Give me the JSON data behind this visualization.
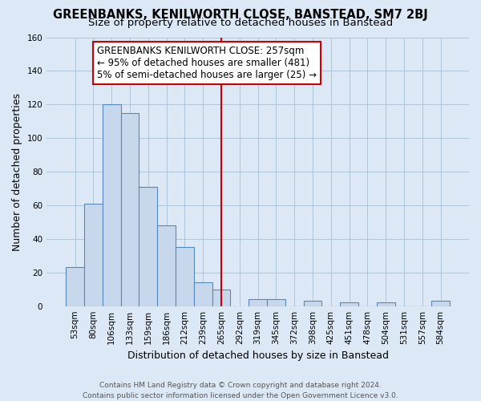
{
  "title": "GREENBANKS, KENILWORTH CLOSE, BANSTEAD, SM7 2BJ",
  "subtitle": "Size of property relative to detached houses in Banstead",
  "xlabel": "Distribution of detached houses by size in Banstead",
  "ylabel": "Number of detached properties",
  "bar_labels": [
    "53sqm",
    "80sqm",
    "106sqm",
    "133sqm",
    "159sqm",
    "186sqm",
    "212sqm",
    "239sqm",
    "265sqm",
    "292sqm",
    "319sqm",
    "345sqm",
    "372sqm",
    "398sqm",
    "425sqm",
    "451sqm",
    "478sqm",
    "504sqm",
    "531sqm",
    "557sqm",
    "584sqm"
  ],
  "bar_values": [
    23,
    61,
    120,
    115,
    71,
    48,
    35,
    14,
    10,
    0,
    4,
    4,
    0,
    3,
    0,
    2,
    0,
    2,
    0,
    0,
    3
  ],
  "bar_color": "#c8d8ec",
  "bar_edge_color": "#5588bb",
  "vline_x_index": 8,
  "vline_color": "#cc0000",
  "annotation_line1": "GREENBANKS KENILWORTH CLOSE: 257sqm",
  "annotation_line2": "← 95% of detached houses are smaller (481)",
  "annotation_line3": "5% of semi-detached houses are larger (25) →",
  "annotation_box_facecolor": "#ffffff",
  "annotation_box_edgecolor": "#cc0000",
  "ylim": [
    0,
    160
  ],
  "yticks": [
    0,
    20,
    40,
    60,
    80,
    100,
    120,
    140,
    160
  ],
  "footer": "Contains HM Land Registry data © Crown copyright and database right 2024.\nContains public sector information licensed under the Open Government Licence v3.0.",
  "background_color": "#dce8f5",
  "plot_bg_color": "#dce8f5",
  "title_fontsize": 10.5,
  "subtitle_fontsize": 9.5,
  "axis_label_fontsize": 9,
  "tick_fontsize": 7.5,
  "footer_fontsize": 6.5,
  "annotation_fontsize": 8.5
}
